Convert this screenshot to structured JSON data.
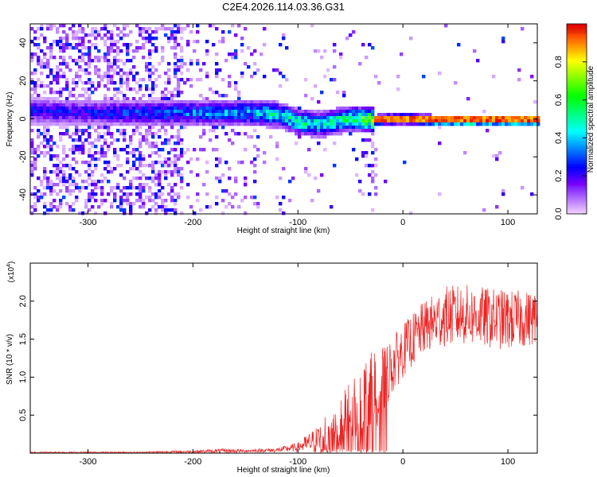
{
  "title": "C2E4.2026.114.03.36.G31",
  "chart_data": [
    {
      "type": "heatmap",
      "name": "spectrogram",
      "xlabel": "Height of straight line (km)",
      "ylabel": "Frequency (Hz)",
      "xlim": [
        -355,
        128
      ],
      "ylim": [
        -50,
        50
      ],
      "xticks": [
        -300,
        -200,
        -100,
        0,
        100
      ],
      "yticks": [
        -40,
        -20,
        0,
        20,
        40
      ],
      "xtick_labels": [
        "-300",
        "-200",
        "-100",
        "0",
        "100"
      ],
      "ytick_labels": [
        "-40",
        "-20",
        "0",
        "20",
        "40"
      ],
      "colorbar": {
        "label": "Normalized spectral amplitude",
        "range": [
          0,
          1
        ],
        "ticks": [
          0.0,
          0.2,
          0.4,
          0.6,
          0.8
        ],
        "tick_labels": [
          "0.0",
          "0.2",
          "0.4",
          "0.6",
          "0.8"
        ]
      },
      "ridge_profile": [
        {
          "x": -355,
          "center_hz": 5,
          "amplitude": 0.25
        },
        {
          "x": -300,
          "center_hz": 4,
          "amplitude": 0.25
        },
        {
          "x": -250,
          "center_hz": 4,
          "amplitude": 0.3
        },
        {
          "x": -200,
          "center_hz": 4,
          "amplitude": 0.35
        },
        {
          "x": -150,
          "center_hz": 4,
          "amplitude": 0.4
        },
        {
          "x": -120,
          "center_hz": 3,
          "amplitude": 0.5
        },
        {
          "x": -100,
          "center_hz": -1,
          "amplitude": 0.55
        },
        {
          "x": -80,
          "center_hz": -2,
          "amplitude": 0.5
        },
        {
          "x": -50,
          "center_hz": 1,
          "amplitude": 0.55
        },
        {
          "x": -30,
          "center_hz": 0,
          "amplitude": 0.75
        },
        {
          "x": 0,
          "center_hz": 1,
          "amplitude": 0.85
        },
        {
          "x": 30,
          "center_hz": 0,
          "amplitude": 0.95
        },
        {
          "x": 128,
          "center_hz": 0,
          "amplitude": 0.95
        }
      ]
    },
    {
      "type": "line",
      "name": "snr",
      "xlabel": "Height of straight line (km)",
      "ylabel": "SNR (10 * v/v)",
      "y_multiplier": "(x10",
      "y_multiplier_exp": "4",
      "y_multiplier_close": ")",
      "xlim": [
        -355,
        128
      ],
      "ylim": [
        0,
        2.5
      ],
      "xticks": [
        -300,
        -200,
        -100,
        0,
        100
      ],
      "yticks": [
        0.5,
        1.0,
        1.5,
        2.0
      ],
      "xtick_labels": [
        "-300",
        "-200",
        "-100",
        "0",
        "100"
      ],
      "ytick_labels": [
        "0.5",
        "1.0",
        "1.5",
        "2.0"
      ],
      "series": [
        {
          "name": "SNR",
          "color": "#ee2222",
          "x": [
            -355,
            -300,
            -250,
            -200,
            -170,
            -150,
            -120,
            -100,
            -80,
            -60,
            -45,
            -35,
            -25,
            -15,
            0,
            20,
            40,
            60,
            80,
            100,
            128
          ],
          "mean": [
            0.01,
            0.01,
            0.01,
            0.02,
            0.03,
            0.03,
            0.04,
            0.08,
            0.18,
            0.4,
            0.6,
            0.75,
            0.88,
            1.05,
            1.35,
            1.65,
            1.8,
            1.82,
            1.78,
            1.75,
            1.78
          ],
          "spread": [
            0.01,
            0.01,
            0.01,
            0.02,
            0.03,
            0.02,
            0.03,
            0.06,
            0.2,
            0.35,
            0.5,
            0.5,
            0.55,
            0.4,
            0.35,
            0.35,
            0.4,
            0.4,
            0.4,
            0.4,
            0.35
          ]
        }
      ]
    }
  ]
}
